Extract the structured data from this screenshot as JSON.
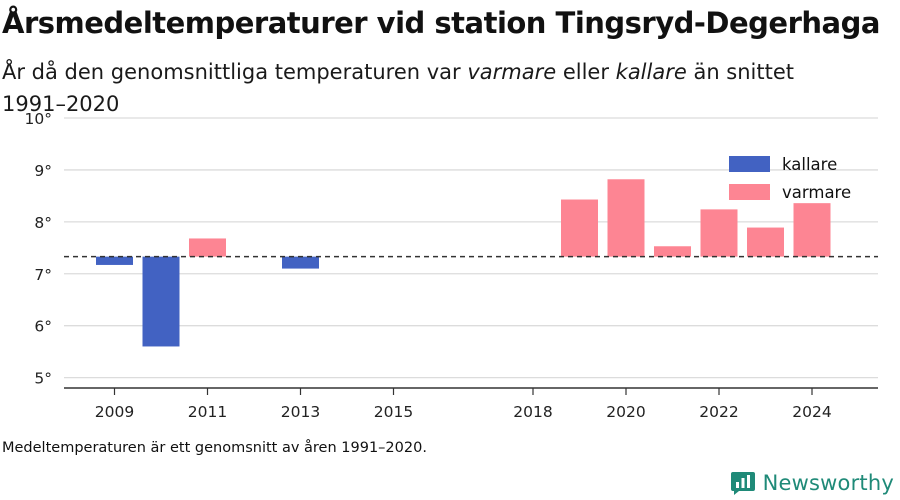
{
  "title": "Årsmedeltemperaturer vid station Tingsryd-Degerhaga",
  "subtitle": {
    "part1": "År då den genomsnittliga temperaturen var ",
    "warm_word": "varmare",
    "part2": " eller ",
    "cold_word": "kallare",
    "part3": " än snittet 1991–2020"
  },
  "footnote": "Medeltemperaturen är ett genomsnitt av åren 1991–2020.",
  "brand": {
    "name": "Newsworthy",
    "color": "#1f8a78",
    "icon": "bar-chart-logo-icon"
  },
  "colors": {
    "kallare": "#4262c2",
    "varmare": "#fd8593",
    "grid": "#dcdcdc",
    "axis": "#333333"
  },
  "chart_data": {
    "type": "bar",
    "baseline": 7.33,
    "baseline_style": "dashed",
    "xlim": [
      2008,
      2025
    ],
    "ylim": [
      4.8,
      10
    ],
    "yticks": [
      5,
      6,
      7,
      8,
      9,
      10
    ],
    "ytick_labels": [
      "5°",
      "6°",
      "7°",
      "8°",
      "9°",
      "10°"
    ],
    "xticks": [
      2009,
      2011,
      2013,
      2015,
      2018,
      2020,
      2022,
      2024
    ],
    "xtick_labels": [
      "2009",
      "2011",
      "2013",
      "2015",
      "2018",
      "2020",
      "2022",
      "2024"
    ],
    "legend": [
      {
        "name": "kallare",
        "color": "#4262c2"
      },
      {
        "name": "varmare",
        "color": "#fd8593"
      }
    ],
    "legend_position": "top-right",
    "grid": true,
    "bars": [
      {
        "year": 2009,
        "value": 7.17,
        "series": "kallare"
      },
      {
        "year": 2010,
        "value": 5.6,
        "series": "kallare"
      },
      {
        "year": 2011,
        "value": 7.68,
        "series": "varmare"
      },
      {
        "year": 2013,
        "value": 7.1,
        "series": "kallare"
      },
      {
        "year": 2019,
        "value": 8.43,
        "series": "varmare"
      },
      {
        "year": 2020,
        "value": 8.82,
        "series": "varmare"
      },
      {
        "year": 2021,
        "value": 7.53,
        "series": "varmare"
      },
      {
        "year": 2022,
        "value": 8.24,
        "series": "varmare"
      },
      {
        "year": 2023,
        "value": 7.89,
        "series": "varmare"
      },
      {
        "year": 2024,
        "value": 8.36,
        "series": "varmare"
      }
    ]
  }
}
